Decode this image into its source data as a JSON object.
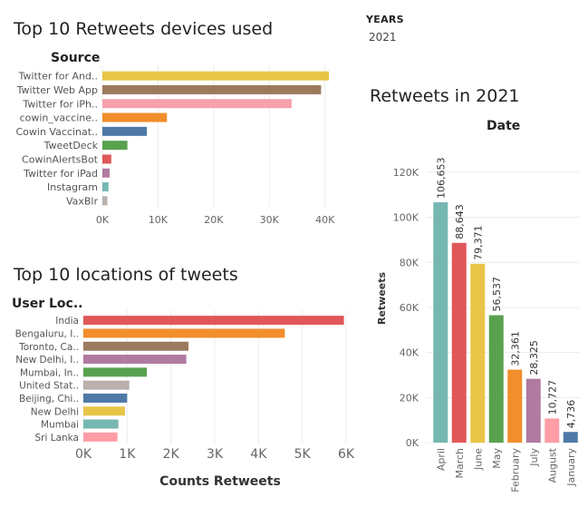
{
  "filter": {
    "label": "YEARS",
    "value": "2021"
  },
  "chart_data": [
    {
      "type": "bar",
      "orientation": "horizontal",
      "title": "Top 10 Retweets devices used",
      "category_header": "Source",
      "categories": [
        "Twitter for And..",
        "Twitter Web App",
        "Twitter for iPh..",
        "cowin_vaccine..",
        "Cowin Vaccinat..",
        "TweetDeck",
        "CowinAlertsBot",
        "Twitter for iPad",
        "Instagram",
        "VaxBlr"
      ],
      "values": [
        40700,
        39300,
        34000,
        11600,
        8000,
        4500,
        1600,
        1300,
        1100,
        900
      ],
      "colors": [
        "#e8c547",
        "#9c7a5e",
        "#f7a1ad",
        "#f28e2b",
        "#4e79a7",
        "#59a14f",
        "#e15759",
        "#b07aa1",
        "#76b7b2",
        "#bab0ac"
      ],
      "xticks": [
        "0K",
        "10K",
        "20K",
        "30K",
        "40K"
      ],
      "xlim": [
        0,
        42000
      ]
    },
    {
      "type": "bar",
      "orientation": "horizontal",
      "title": "Top 10 locations of tweets",
      "category_header": "User Loc..",
      "categories": [
        "India",
        "Bengaluru, I..",
        "Toronto, Ca..",
        "New Delhi, I..",
        "Mumbai, In..",
        "United Stat..",
        "Beijing, Chi..",
        "New Delhi",
        "Mumbai",
        "Sri Lanka"
      ],
      "values": [
        5950,
        4600,
        2400,
        2350,
        1450,
        1050,
        1000,
        950,
        800,
        780
      ],
      "colors": [
        "#e15759",
        "#f28e2b",
        "#9c7a5e",
        "#b07aa1",
        "#59a14f",
        "#bab0ac",
        "#4e79a7",
        "#e8c547",
        "#76b7b2",
        "#ff9da7"
      ],
      "xticks": [
        "0K",
        "1K",
        "2K",
        "3K",
        "4K",
        "5K",
        "6K"
      ],
      "xlim": [
        0,
        6000
      ],
      "xlabel": "Counts  Retweets"
    },
    {
      "type": "bar",
      "orientation": "vertical",
      "title": "Retweets in 2021",
      "category_header": "Date",
      "ylabel": "Retweets",
      "categories": [
        "April",
        "March",
        "June",
        "May",
        "February",
        "July",
        "August",
        "January"
      ],
      "values": [
        106653,
        88643,
        79371,
        56537,
        32361,
        28325,
        10727,
        4736
      ],
      "value_labels": [
        "106,653",
        "88,643",
        "79,371",
        "56,537",
        "32,361",
        "28,325",
        "10,727",
        "4,736"
      ],
      "colors": [
        "#76b7b2",
        "#e15759",
        "#e8c547",
        "#59a14f",
        "#f28e2b",
        "#b07aa1",
        "#ff9da7",
        "#4e79a7"
      ],
      "yticks": [
        "0K",
        "20K",
        "40K",
        "60K",
        "80K",
        "100K",
        "120K"
      ],
      "ylim": [
        0,
        128000
      ]
    }
  ]
}
